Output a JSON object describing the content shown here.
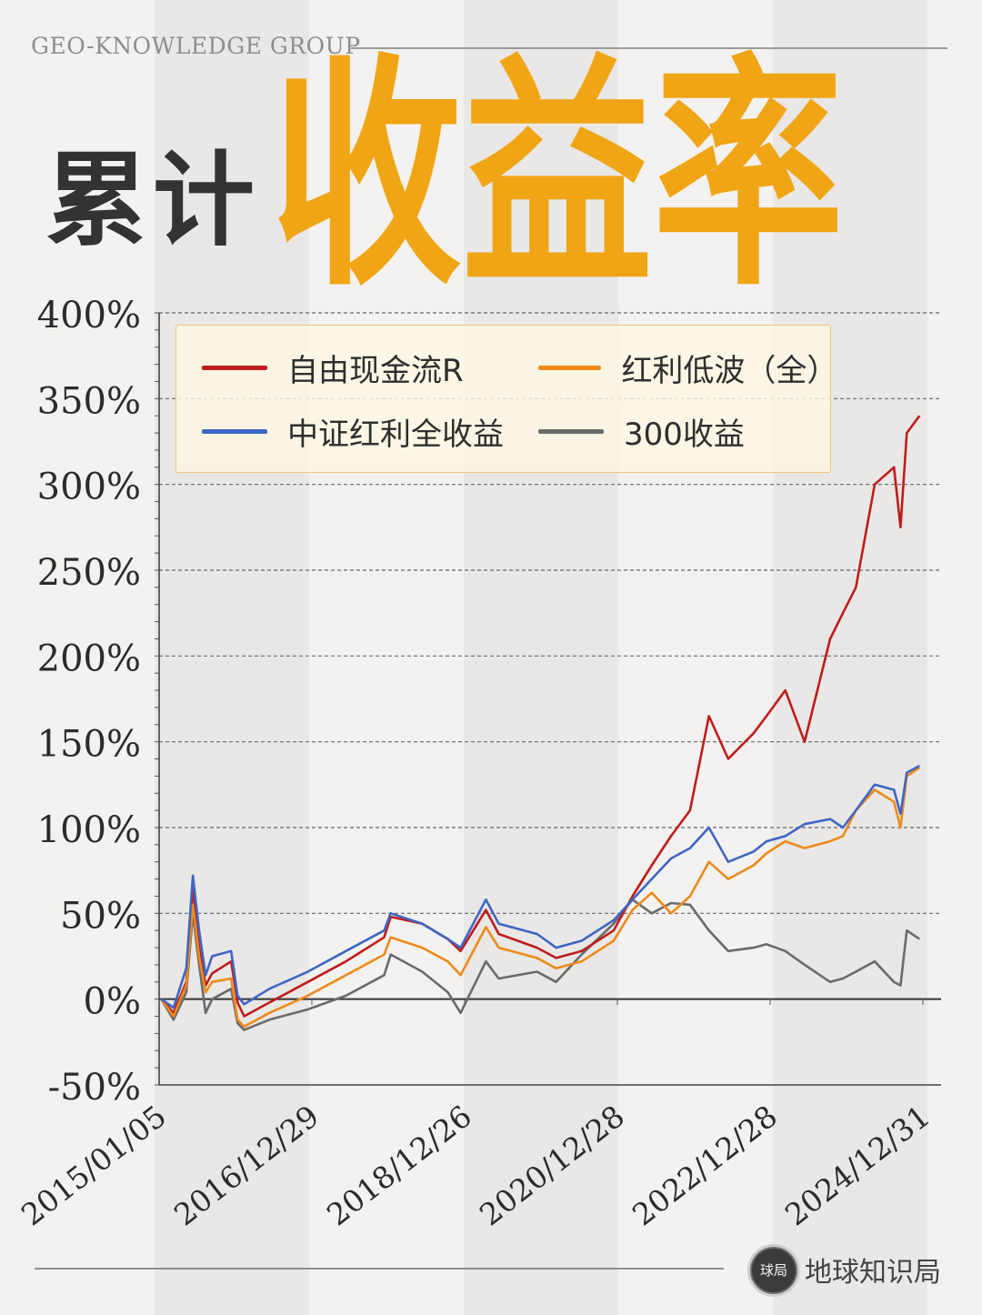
{
  "header": {
    "brand": "GEO-KNOWLEDGE GROUP",
    "title_prefix": "累计",
    "title_main": "收益率"
  },
  "footer": {
    "logo_text": "球局",
    "name": "地球知识局"
  },
  "colors": {
    "accent": "#f0a515",
    "red": "#c01c1c",
    "orange": "#ee8a1a",
    "blue": "#3f66c4",
    "gray": "#6b6b6b",
    "title_dark": "#333333"
  },
  "chart_data": {
    "type": "line",
    "title": "累计收益率",
    "xlabel": "",
    "ylabel": "",
    "y_unit": "%",
    "ylim": [
      -50,
      400
    ],
    "y_ticks": [
      -50,
      0,
      50,
      100,
      150,
      200,
      250,
      300,
      350,
      400
    ],
    "y_tick_labels": [
      "-50%",
      "0%",
      "50%",
      "100%",
      "150%",
      "200%",
      "250%",
      "300%",
      "350%",
      "400%"
    ],
    "x_tick_labels": [
      "2015/01/05",
      "2016/12/29",
      "2018/12/26",
      "2020/12/28",
      "2022/12/28",
      "2024/12/31"
    ],
    "x_range": [
      "2015-01-05",
      "2024-12-31"
    ],
    "grid": "horizontal dashed",
    "legend_position": "top-left",
    "x": [
      "2015-01",
      "2015-03",
      "2015-05",
      "2015-06",
      "2015-07",
      "2015-08",
      "2015-09",
      "2015-12",
      "2016-01",
      "2016-02",
      "2016-06",
      "2016-12",
      "2017-06",
      "2017-12",
      "2018-01",
      "2018-06",
      "2018-10",
      "2018-12",
      "2019-04",
      "2019-06",
      "2019-12",
      "2020-03",
      "2020-07",
      "2020-12",
      "2021-03",
      "2021-06",
      "2021-09",
      "2021-12",
      "2022-03",
      "2022-06",
      "2022-10",
      "2022-12",
      "2023-03",
      "2023-06",
      "2023-10",
      "2023-12",
      "2024-02",
      "2024-05",
      "2024-08",
      "2024-09",
      "2024-10",
      "2024-12"
    ],
    "series": [
      {
        "name": "自由现金流R",
        "color": "#c01c1c",
        "values": [
          0,
          -8,
          10,
          65,
          30,
          8,
          15,
          22,
          -2,
          -10,
          -2,
          10,
          22,
          36,
          48,
          44,
          35,
          28,
          52,
          38,
          30,
          24,
          28,
          40,
          60,
          78,
          95,
          110,
          165,
          140,
          155,
          165,
          180,
          150,
          210,
          225,
          240,
          300,
          310,
          275,
          330,
          340
        ]
      },
      {
        "name": "红利低波（全）",
        "color": "#ee8a1a",
        "values": [
          0,
          -10,
          8,
          55,
          25,
          4,
          10,
          12,
          -12,
          -16,
          -8,
          2,
          14,
          26,
          36,
          30,
          22,
          14,
          42,
          30,
          24,
          18,
          22,
          34,
          52,
          62,
          50,
          60,
          80,
          70,
          78,
          85,
          92,
          88,
          92,
          95,
          110,
          122,
          115,
          100,
          130,
          135
        ]
      },
      {
        "name": "中证红利全收益",
        "color": "#3f66c4",
        "values": [
          0,
          -5,
          18,
          72,
          40,
          14,
          25,
          28,
          2,
          -3,
          6,
          16,
          28,
          40,
          50,
          44,
          35,
          30,
          58,
          44,
          38,
          30,
          34,
          46,
          58,
          70,
          82,
          88,
          100,
          80,
          86,
          92,
          95,
          102,
          105,
          100,
          110,
          125,
          122,
          108,
          132,
          136
        ]
      },
      {
        "name": "300收益",
        "color": "#6b6b6b",
        "values": [
          0,
          -12,
          4,
          50,
          20,
          -8,
          0,
          6,
          -14,
          -18,
          -12,
          -6,
          2,
          14,
          26,
          16,
          4,
          -8,
          22,
          12,
          16,
          10,
          26,
          44,
          58,
          50,
          56,
          55,
          40,
          28,
          30,
          32,
          28,
          20,
          10,
          12,
          16,
          22,
          10,
          8,
          40,
          35
        ]
      }
    ]
  }
}
